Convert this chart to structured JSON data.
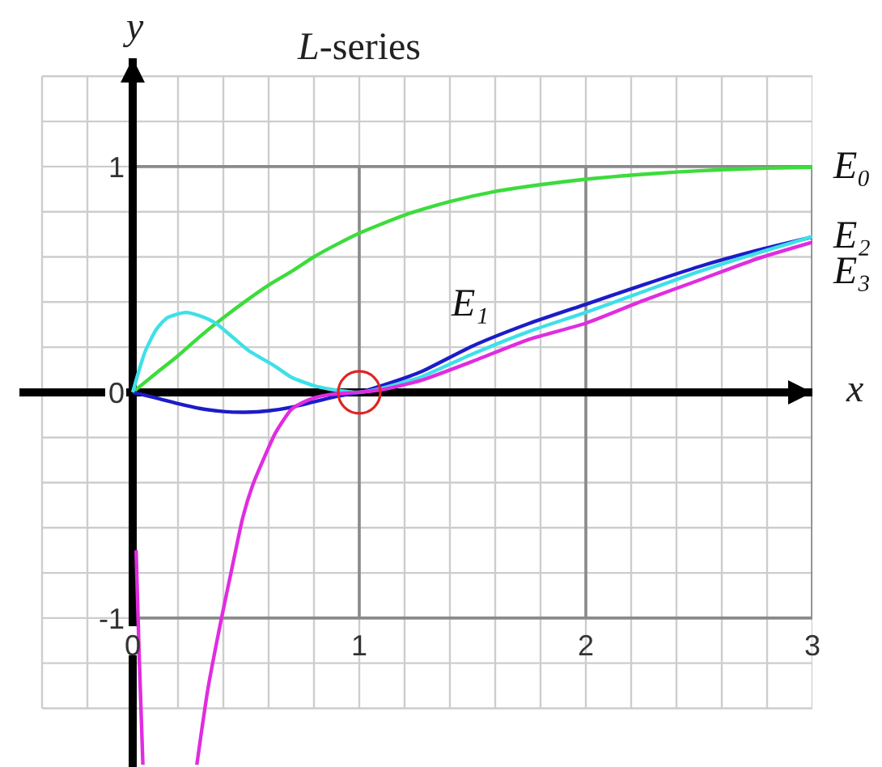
{
  "chart_data": {
    "type": "line",
    "title": "L-series",
    "xlabel": "x",
    "ylabel": "y",
    "xlim": [
      -0.5,
      3
    ],
    "ylim": [
      -1.66,
      1.48
    ],
    "xticks": [
      {
        "value": -0.4,
        "label": null
      },
      {
        "value": -0.2,
        "label": null
      },
      0,
      {
        "value": 0.2,
        "label": null
      },
      {
        "value": 0.4,
        "label": null
      },
      {
        "value": 0.6,
        "label": null
      },
      {
        "value": 0.8,
        "label": null
      },
      1,
      {
        "value": 1.2,
        "label": null
      },
      {
        "value": 1.4,
        "label": null
      },
      {
        "value": 1.6,
        "label": null
      },
      {
        "value": 1.8,
        "label": null
      },
      2,
      {
        "value": 2.2,
        "label": null
      },
      {
        "value": 2.4,
        "label": null
      },
      {
        "value": 2.6,
        "label": null
      },
      {
        "value": 2.8,
        "label": null
      },
      3
    ],
    "yticks": [
      {
        "value": -1.4,
        "label": null
      },
      {
        "value": -1.2,
        "label": null
      },
      -1,
      {
        "value": -0.8,
        "label": null
      },
      {
        "value": -0.6,
        "label": null
      },
      {
        "value": -0.4,
        "label": null
      },
      {
        "value": -0.2,
        "label": null
      },
      0,
      {
        "value": 0.2,
        "label": null
      },
      {
        "value": 0.4,
        "label": null
      },
      {
        "value": 0.6,
        "label": null
      },
      {
        "value": 0.8,
        "label": null
      },
      1,
      {
        "value": 1.2,
        "label": null
      },
      {
        "value": 1.4,
        "label": null
      }
    ],
    "grid": true,
    "marker": "none",
    "line_style": "solid",
    "ref_lines": [
      {
        "axis": "x",
        "value": 1,
        "color": "#8a8a8a"
      },
      {
        "axis": "x",
        "value": 2,
        "color": "#8a8a8a"
      }
    ],
    "series": [
      {
        "name": "E₀",
        "color": "#3cdc3c",
        "x": [
          0,
          0.1,
          0.2,
          0.3,
          0.4,
          0.5,
          0.6,
          0.7,
          0.8,
          0.9,
          1.0,
          1.2,
          1.4,
          1.6,
          1.8,
          2.0,
          2.2,
          2.4,
          2.6,
          2.8,
          3.0
        ],
        "values": [
          0,
          0.082,
          0.162,
          0.25,
          0.33,
          0.405,
          0.475,
          0.535,
          0.6,
          0.655,
          0.705,
          0.785,
          0.845,
          0.89,
          0.92,
          0.944,
          0.962,
          0.976,
          0.986,
          0.993,
          0.997
        ]
      },
      {
        "name": "E₁",
        "color": "#1c1cc8",
        "x": [
          0,
          0.1,
          0.2,
          0.3,
          0.4,
          0.5,
          0.6,
          0.7,
          0.8,
          0.9,
          1.0,
          1.1,
          1.27,
          1.5,
          1.75,
          2.0,
          2.25,
          2.5,
          2.75,
          3.0
        ],
        "values": [
          0,
          -0.024,
          -0.05,
          -0.072,
          -0.085,
          -0.088,
          -0.082,
          -0.066,
          -0.042,
          -0.018,
          0,
          0.03,
          0.09,
          0.205,
          0.305,
          0.39,
          0.475,
          0.557,
          0.627,
          0.688
        ]
      },
      {
        "name": "E₂",
        "color": "#3ee0e8",
        "x": [
          0,
          0.033,
          0.057,
          0.105,
          0.152,
          0.236,
          0.319,
          0.367,
          0.44,
          0.51,
          0.629,
          0.7,
          0.795,
          0.87,
          0.95,
          1.0,
          1.1,
          1.27,
          1.5,
          1.75,
          2.0,
          2.25,
          2.5,
          2.75,
          3.0
        ],
        "values": [
          0,
          0.115,
          0.186,
          0.28,
          0.33,
          0.354,
          0.33,
          0.306,
          0.245,
          0.186,
          0.115,
          0.067,
          0.031,
          0.014,
          0.003,
          0,
          0.018,
          0.067,
          0.17,
          0.27,
          0.354,
          0.445,
          0.535,
          0.615,
          0.69
        ]
      },
      {
        "name": "E₃",
        "color": "#e02ce0",
        "x": [
          0.015,
          0.029,
          0.045,
          0.16,
          0.283,
          0.331,
          0.39,
          0.44,
          0.486,
          0.53,
          0.58,
          0.63,
          0.7,
          0.75,
          0.8,
          0.87,
          0.95,
          1.0,
          1.1,
          1.27,
          1.5,
          1.75,
          2.0,
          2.25,
          2.5,
          2.75,
          3.0
        ],
        "values": [
          -0.7,
          -1.18,
          -1.65,
          null,
          -1.65,
          -1.32,
          -1.01,
          -0.77,
          -0.554,
          -0.41,
          -0.29,
          -0.18,
          -0.076,
          -0.045,
          -0.025,
          -0.01,
          -0.003,
          0,
          0.012,
          0.052,
          0.137,
          0.235,
          0.306,
          0.405,
          0.497,
          0.59,
          0.665
        ]
      },
      {
        "type": "scatter",
        "marker": "circle",
        "color": "#e02424",
        "x": [
          1
        ],
        "values": [
          0
        ]
      }
    ]
  }
}
